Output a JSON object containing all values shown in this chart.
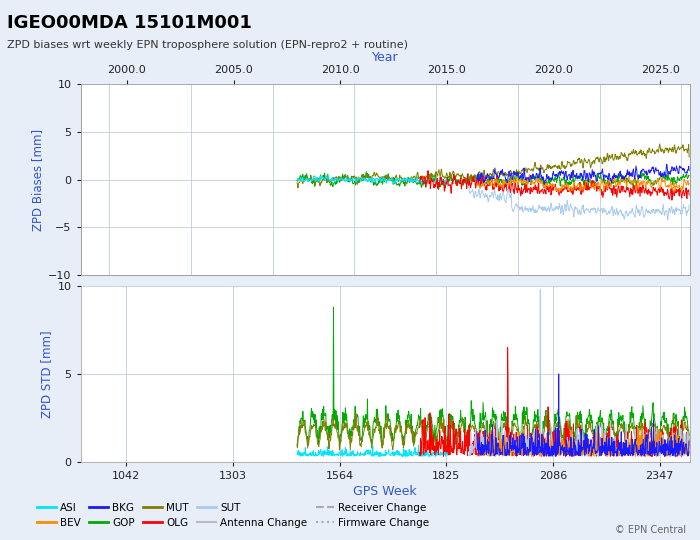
{
  "title": "IGEO00MDA 15101M001",
  "subtitle": "ZPD biases wrt weekly EPN troposphere solution (EPN-repro2 + routine)",
  "xlabel_bottom": "GPS Week",
  "xlabel_top": "Year",
  "ylabel_bias": "ZPD Biases [mm]",
  "ylabel_std": "ZPD STD [mm]",
  "epn_credit": "© EPN Central",
  "xlim_gps": [
    930,
    2420
  ],
  "bias_ylim": [
    -10,
    10
  ],
  "std_ylim": [
    0,
    10
  ],
  "bias_yticks": [
    -10,
    -5,
    0,
    5,
    10
  ],
  "std_yticks": [
    0,
    5,
    10
  ],
  "year_ticks": [
    2000.0,
    2005.0,
    2010.0,
    2015.0,
    2020.0,
    2025.0
  ],
  "gps_ticks": [
    1042,
    1303,
    1564,
    1825,
    2086,
    2347
  ],
  "series_colors": {
    "ASI": "#00e5ff",
    "BEV": "#ff8c00",
    "BKG": "#1a1aff",
    "GOP": "#00aa00",
    "MUT": "#808000",
    "OLG": "#ff0000",
    "SUT": "#aaccee"
  },
  "antenna_change_color": "#bbbbbb",
  "receiver_change_color": "#aaaaaa",
  "firmware_change_color": "#aaaaaa",
  "bg_color": "#e8eef8",
  "plot_bg": "#ffffff",
  "grid_color": "#c0cce0",
  "title_color": "#000000",
  "subtitle_color": "#333333",
  "axis_label_color": "#3355cc",
  "tick_color": "#222222",
  "lw": 0.7
}
